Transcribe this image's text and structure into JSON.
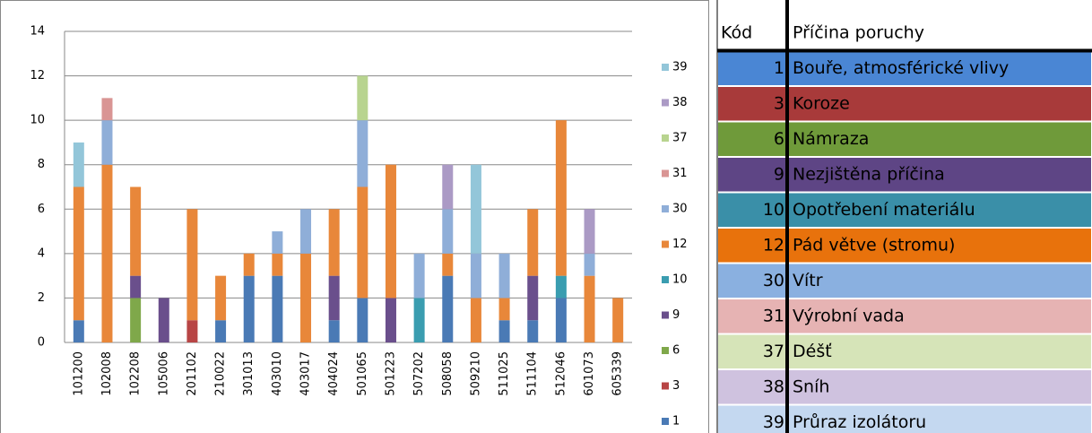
{
  "chart_data": {
    "type": "stacked_bar",
    "categories": [
      "101200",
      "102008",
      "102208",
      "105006",
      "201102",
      "210022",
      "301013",
      "403010",
      "403017",
      "404024",
      "501065",
      "501223",
      "507202",
      "508058",
      "509210",
      "511025",
      "511104",
      "512046",
      "601073",
      "605339"
    ],
    "series": [
      {
        "name": "1",
        "color": "#4a7ab5",
        "values": [
          1,
          0,
          0,
          0,
          0,
          1,
          3,
          3,
          0,
          1,
          2,
          0,
          0,
          3,
          0,
          1,
          1,
          2,
          0,
          0
        ]
      },
      {
        "name": "3",
        "color": "#b84545",
        "values": [
          0,
          0,
          0,
          0,
          1,
          0,
          0,
          0,
          0,
          0,
          0,
          0,
          0,
          0,
          0,
          0,
          0,
          0,
          0,
          0
        ]
      },
      {
        "name": "6",
        "color": "#7fa84a",
        "values": [
          0,
          0,
          2,
          0,
          0,
          0,
          0,
          0,
          0,
          0,
          0,
          0,
          0,
          0,
          0,
          0,
          0,
          0,
          0,
          0
        ]
      },
      {
        "name": "9",
        "color": "#6a4f8c",
        "values": [
          0,
          0,
          1,
          2,
          0,
          0,
          0,
          0,
          0,
          2,
          0,
          2,
          0,
          0,
          0,
          0,
          2,
          0,
          0,
          0
        ]
      },
      {
        "name": "10",
        "color": "#3a9db0",
        "values": [
          0,
          0,
          0,
          0,
          0,
          0,
          0,
          0,
          0,
          0,
          0,
          0,
          2,
          0,
          0,
          0,
          0,
          1,
          0,
          0
        ]
      },
      {
        "name": "12",
        "color": "#e8873a",
        "values": [
          6,
          8,
          4,
          0,
          5,
          2,
          1,
          1,
          4,
          3,
          5,
          6,
          0,
          1,
          2,
          1,
          3,
          7,
          3,
          2
        ]
      },
      {
        "name": "30",
        "color": "#8faed8",
        "values": [
          0,
          2,
          0,
          0,
          0,
          0,
          0,
          1,
          2,
          0,
          3,
          0,
          2,
          2,
          2,
          2,
          0,
          0,
          1,
          0
        ]
      },
      {
        "name": "31",
        "color": "#d99594",
        "values": [
          0,
          1,
          0,
          0,
          0,
          0,
          0,
          0,
          0,
          0,
          0,
          0,
          0,
          0,
          0,
          0,
          0,
          0,
          0,
          0
        ]
      },
      {
        "name": "37",
        "color": "#b8d48f",
        "values": [
          0,
          0,
          0,
          0,
          0,
          0,
          0,
          0,
          0,
          0,
          2,
          0,
          0,
          0,
          0,
          0,
          0,
          0,
          0,
          0
        ]
      },
      {
        "name": "38",
        "color": "#ab9ac5",
        "values": [
          0,
          0,
          0,
          0,
          0,
          0,
          0,
          0,
          0,
          0,
          0,
          0,
          0,
          2,
          0,
          0,
          0,
          0,
          2,
          0
        ]
      },
      {
        "name": "39",
        "color": "#93c6d9",
        "values": [
          2,
          0,
          0,
          0,
          0,
          0,
          0,
          0,
          0,
          0,
          0,
          0,
          0,
          0,
          4,
          0,
          0,
          0,
          0,
          0
        ]
      }
    ],
    "ylim": [
      0,
      14
    ],
    "yticks": [
      0,
      2,
      4,
      6,
      8,
      10,
      12,
      14
    ],
    "grid": true
  },
  "table": {
    "header": [
      "Kód",
      "Příčina poruchy"
    ],
    "rows": [
      [
        1,
        "Bouře, atmosférické vlivy"
      ],
      [
        3,
        "Koroze"
      ],
      [
        6,
        "Námraza"
      ],
      [
        9,
        "Nezjištěna příčina"
      ],
      [
        10,
        "Opotřebení materiálu"
      ],
      [
        12,
        "Pád větve (stromu)"
      ],
      [
        30,
        "Vítr"
      ],
      [
        31,
        "Výrobní vada"
      ],
      [
        37,
        "Déšť"
      ],
      [
        38,
        "Sníh"
      ],
      [
        39,
        "Průraz izolátoru"
      ]
    ],
    "row_colors": [
      "#4a86d4",
      "#a83a3a",
      "#6f9a3a",
      "#5e4585",
      "#3a8fa8",
      "#e8720c",
      "#8ab0e0",
      "#e6b3b3",
      "#d6e4b8",
      "#cfc2df",
      "#c4d8f0"
    ]
  }
}
